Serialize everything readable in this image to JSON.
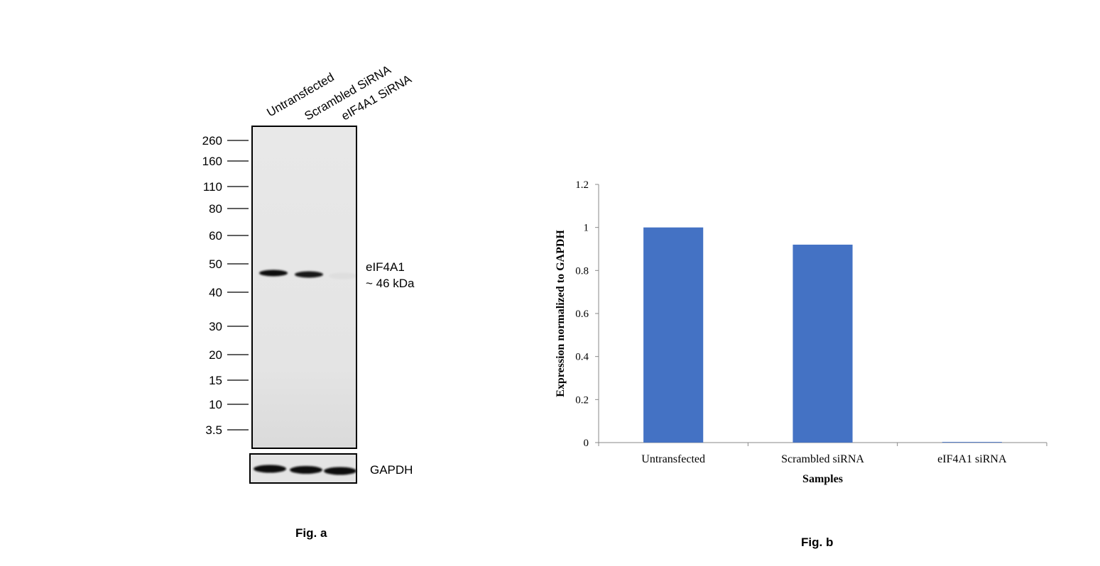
{
  "figure_a": {
    "caption": "Fig. a",
    "lane_labels": [
      "Untransfected",
      "Scrambled SiRNA",
      "eIF4A1 SiRNA"
    ],
    "markers": [
      {
        "label": "260",
        "kda": 260
      },
      {
        "label": "160",
        "kda": 160
      },
      {
        "label": "110",
        "kda": 110
      },
      {
        "label": "80",
        "kda": 80
      },
      {
        "label": "60",
        "kda": 60
      },
      {
        "label": "50",
        "kda": 50
      },
      {
        "label": "40",
        "kda": 40
      },
      {
        "label": "30",
        "kda": 30
      },
      {
        "label": "20",
        "kda": 20
      },
      {
        "label": "15",
        "kda": 15
      },
      {
        "label": "10",
        "kda": 10
      },
      {
        "label": "3.5",
        "kda": 3.5
      }
    ],
    "target_label_line1": "eIF4A1",
    "target_label_line2": "~ 46 kDa",
    "loading_control_label": "GAPDH",
    "band_intensity": [
      1,
      0.95,
      0.03
    ],
    "gapdh_intensity": [
      1,
      1,
      1
    ],
    "colors": {
      "membrane": "#e6e6e6",
      "band": "#111111"
    }
  },
  "figure_b": {
    "caption": "Fig. b"
  },
  "chart_data": {
    "type": "bar",
    "categories": [
      "Untransfected",
      "Scrambled siRNA",
      "eIF4A1 siRNA"
    ],
    "values": [
      1.0,
      0.92,
      0.003
    ],
    "xlabel": "Samples",
    "ylabel": "Expression normalized to GAPDH",
    "ylim": [
      0,
      1.2
    ],
    "yticks": [
      0,
      0.2,
      0.4,
      0.6,
      0.8,
      1,
      1.2
    ],
    "ytick_labels": [
      "0",
      "0.2",
      "0.4",
      "0.6",
      "0.8",
      "1",
      "1.2"
    ],
    "grid": false,
    "legend": "none",
    "bar_color": "#4472c4"
  }
}
